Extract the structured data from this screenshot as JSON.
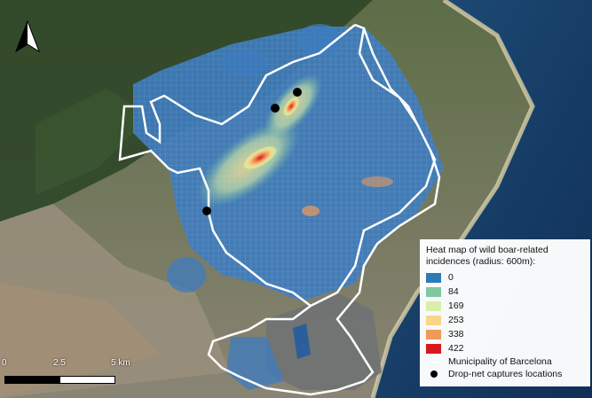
{
  "legend": {
    "title": "Heat map of wild boar-related incidences (radius: 600m):",
    "classes": [
      {
        "label": "0",
        "color": "#2c7bb6"
      },
      {
        "label": "84",
        "color": "#7fc8a0"
      },
      {
        "label": "169",
        "color": "#d9efa5"
      },
      {
        "label": "253",
        "color": "#f7d58b"
      },
      {
        "label": "338",
        "color": "#f09a5a"
      },
      {
        "label": "422",
        "color": "#d7191c"
      }
    ],
    "boundary_label": "Municipality of Barcelona",
    "captures_label": "Drop-net captures locations"
  },
  "scalebar": {
    "labels": [
      "0",
      "2.5",
      "5 km"
    ]
  },
  "north_arrow": {
    "icon": "north-arrow-icon"
  }
}
